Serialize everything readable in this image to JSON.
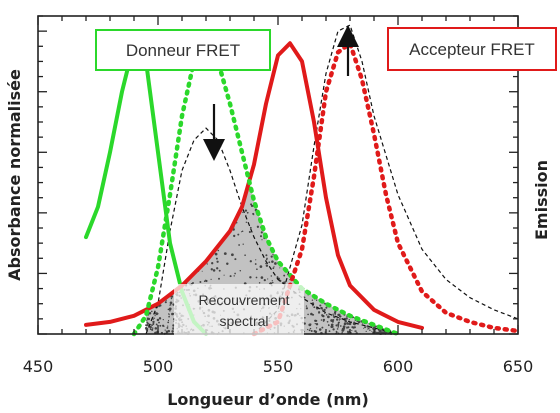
{
  "chart_data": {
    "type": "line",
    "xlabel": "Longueur d’onde (nm)",
    "ylabel_left": "Absorbance  normalisée",
    "ylabel_right": "Emission",
    "xlim": [
      450,
      650
    ],
    "ylim": [
      0,
      1.05
    ],
    "x_ticks": [
      450,
      500,
      550,
      600,
      650
    ],
    "grid": false,
    "colors": {
      "donor": "#2bd82b",
      "acceptor": "#e01a1a",
      "reference": "#111111"
    },
    "legend": [
      {
        "text": "Donneur FRET",
        "color": "#2bd82b"
      },
      {
        "text": "Accepteur FRET",
        "color": "#e01a1a"
      }
    ],
    "annotation": {
      "text_line1": "Recouvrement",
      "text_line2": "spectral"
    },
    "series": [
      {
        "color": "#2bd82b",
        "style": "solid",
        "x": [
          470,
          475,
          480,
          485,
          490,
          495,
          500,
          505,
          510,
          515,
          520
        ],
        "y": [
          0.32,
          0.42,
          0.6,
          0.8,
          0.96,
          0.9,
          0.6,
          0.3,
          0.14,
          0.04,
          0.0
        ]
      },
      {
        "color": "#2bd82b",
        "style": "dotted",
        "x": [
          490,
          495,
          500,
          505,
          510,
          515,
          520,
          525,
          530,
          535,
          540,
          545,
          550,
          560,
          570,
          580,
          590,
          600
        ],
        "y": [
          0.0,
          0.06,
          0.22,
          0.46,
          0.72,
          0.9,
          0.96,
          0.9,
          0.76,
          0.6,
          0.44,
          0.32,
          0.24,
          0.15,
          0.1,
          0.06,
          0.03,
          0.0
        ]
      },
      {
        "color": "#e01a1a",
        "style": "solid",
        "x": [
          470,
          480,
          490,
          500,
          510,
          520,
          530,
          535,
          540,
          545,
          550,
          555,
          560,
          565,
          570,
          575,
          580,
          590,
          600,
          610
        ],
        "y": [
          0.03,
          0.04,
          0.06,
          0.1,
          0.16,
          0.24,
          0.34,
          0.42,
          0.56,
          0.76,
          0.92,
          0.96,
          0.9,
          0.7,
          0.45,
          0.26,
          0.16,
          0.08,
          0.04,
          0.02
        ]
      },
      {
        "color": "#e01a1a",
        "style": "dotted",
        "x": [
          540,
          550,
          560,
          565,
          570,
          575,
          580,
          585,
          590,
          595,
          600,
          610,
          620,
          630,
          640,
          650
        ],
        "y": [
          0.0,
          0.04,
          0.28,
          0.52,
          0.8,
          0.93,
          0.96,
          0.84,
          0.66,
          0.46,
          0.3,
          0.14,
          0.07,
          0.04,
          0.02,
          0.01
        ]
      },
      {
        "color": "#111111",
        "style": "dashed",
        "x": [
          495,
          500,
          505,
          510,
          515,
          520,
          525,
          530,
          535,
          540,
          545,
          550,
          560,
          570,
          580,
          590,
          600
        ],
        "y": [
          0.0,
          0.1,
          0.34,
          0.54,
          0.64,
          0.68,
          0.64,
          0.54,
          0.42,
          0.32,
          0.24,
          0.18,
          0.12,
          0.07,
          0.04,
          0.02,
          0.0
        ]
      },
      {
        "color": "#111111",
        "style": "dashed",
        "x": [
          540,
          550,
          560,
          565,
          570,
          575,
          580,
          585,
          590,
          600,
          610,
          620,
          630,
          640,
          650
        ],
        "y": [
          0.0,
          0.08,
          0.36,
          0.62,
          0.86,
          1.0,
          1.02,
          0.9,
          0.72,
          0.46,
          0.28,
          0.18,
          0.12,
          0.08,
          0.05
        ]
      }
    ]
  }
}
